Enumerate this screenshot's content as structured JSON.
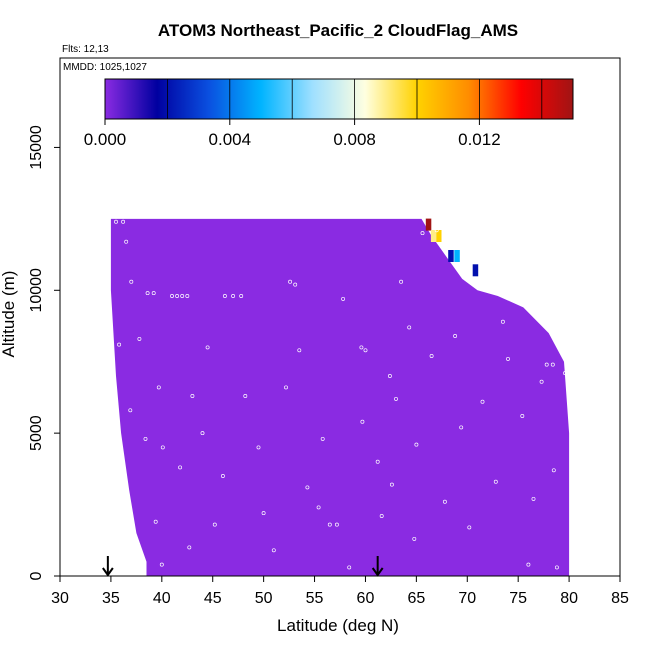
{
  "chart_data": {
    "type": "heatmap",
    "title": "ATOM3 Northeast_Pacific_2 CloudFlag_AMS",
    "annotations": [
      "Flts: 12,13",
      "MMDD: 1025,1027"
    ],
    "xlabel": "Latitude (deg N)",
    "ylabel": "Altitude (m)",
    "xlim": [
      30,
      85
    ],
    "ylim": [
      0,
      17500
    ],
    "x_ticks": [
      "30",
      "35",
      "40",
      "45",
      "50",
      "55",
      "60",
      "65",
      "70",
      "75",
      "80",
      "85"
    ],
    "y_ticks": [
      "0",
      "5000",
      "10000",
      "15000"
    ],
    "colorbar": {
      "range": [
        0,
        0.015
      ],
      "tick_labels": [
        "0.000",
        "0.004",
        "0.008",
        "0.012"
      ],
      "tick_values": [
        0,
        0.004,
        0.008,
        0.012
      ],
      "stops": [
        "#8a2be2",
        "#0000a0",
        "#0a50e0",
        "#00b4ff",
        "#a0e0ff",
        "#ffffe0",
        "#ffd200",
        "#ff8c00",
        "#ff0000",
        "#a01414"
      ]
    },
    "background_value": 0.0,
    "fill_color": "#8a2be2",
    "coverage_top_profile": [
      {
        "lat": 35,
        "alt": 12500
      },
      {
        "lat": 65.5,
        "alt": 12500
      },
      {
        "lat": 66.5,
        "alt": 11900
      },
      {
        "lat": 67.5,
        "alt": 11400
      },
      {
        "lat": 68.5,
        "alt": 10900
      },
      {
        "lat": 69.5,
        "alt": 10400
      },
      {
        "lat": 71,
        "alt": 10000
      },
      {
        "lat": 73,
        "alt": 9800
      },
      {
        "lat": 75.5,
        "alt": 9400
      },
      {
        "lat": 78,
        "alt": 8500
      },
      {
        "lat": 79.5,
        "alt": 7500
      },
      {
        "lat": 80,
        "alt": 5000
      }
    ],
    "highlight_cells": [
      {
        "lat": 66.2,
        "alt": 12300,
        "value": 0.015
      },
      {
        "lat": 67.2,
        "alt": 11900,
        "value": 0.01
      },
      {
        "lat": 66.7,
        "alt": 11900,
        "value": 0.009
      },
      {
        "lat": 69.0,
        "alt": 11200,
        "value": 0.005
      },
      {
        "lat": 68.4,
        "alt": 11200,
        "value": 0.002
      },
      {
        "lat": 70.8,
        "alt": 10700,
        "value": 0.002
      }
    ],
    "sample_points": [
      {
        "lat": 35.5,
        "alt": 12400
      },
      {
        "lat": 36.2,
        "alt": 12400
      },
      {
        "lat": 36.5,
        "alt": 11700
      },
      {
        "lat": 37.0,
        "alt": 10300
      },
      {
        "lat": 38.6,
        "alt": 9900
      },
      {
        "lat": 39.2,
        "alt": 9900
      },
      {
        "lat": 41.0,
        "alt": 9800
      },
      {
        "lat": 41.5,
        "alt": 9800
      },
      {
        "lat": 42.0,
        "alt": 9800
      },
      {
        "lat": 42.5,
        "alt": 9800
      },
      {
        "lat": 46.2,
        "alt": 9800
      },
      {
        "lat": 47.0,
        "alt": 9800
      },
      {
        "lat": 47.8,
        "alt": 9800
      },
      {
        "lat": 52.6,
        "alt": 10300
      },
      {
        "lat": 53.1,
        "alt": 10200
      },
      {
        "lat": 59.6,
        "alt": 8000
      },
      {
        "lat": 60.0,
        "alt": 7900
      },
      {
        "lat": 62.4,
        "alt": 7000
      },
      {
        "lat": 63.5,
        "alt": 10300
      },
      {
        "lat": 64.3,
        "alt": 8700
      },
      {
        "lat": 65.6,
        "alt": 12000
      },
      {
        "lat": 67.0,
        "alt": 12100
      },
      {
        "lat": 68.0,
        "alt": 11800
      },
      {
        "lat": 35.0,
        "alt": 8500
      },
      {
        "lat": 35.3,
        "alt": 6800
      },
      {
        "lat": 37.8,
        "alt": 8300
      },
      {
        "lat": 38.4,
        "alt": 4800
      },
      {
        "lat": 39.7,
        "alt": 6600
      },
      {
        "lat": 40.1,
        "alt": 4500
      },
      {
        "lat": 39.4,
        "alt": 1900
      },
      {
        "lat": 40.0,
        "alt": 400
      },
      {
        "lat": 42.7,
        "alt": 1000
      },
      {
        "lat": 43.0,
        "alt": 6300
      },
      {
        "lat": 44.5,
        "alt": 8000
      },
      {
        "lat": 45.2,
        "alt": 1800
      },
      {
        "lat": 46.0,
        "alt": 3500
      },
      {
        "lat": 48.2,
        "alt": 6300
      },
      {
        "lat": 49.5,
        "alt": 4500
      },
      {
        "lat": 50.0,
        "alt": 2200
      },
      {
        "lat": 51.0,
        "alt": 900
      },
      {
        "lat": 52.2,
        "alt": 6600
      },
      {
        "lat": 54.3,
        "alt": 3100
      },
      {
        "lat": 55.4,
        "alt": 2400
      },
      {
        "lat": 56.5,
        "alt": 1800
      },
      {
        "lat": 57.2,
        "alt": 1800
      },
      {
        "lat": 58.4,
        "alt": 300
      },
      {
        "lat": 59.7,
        "alt": 5400
      },
      {
        "lat": 61.2,
        "alt": 4000
      },
      {
        "lat": 61.6,
        "alt": 2100
      },
      {
        "lat": 62.6,
        "alt": 3200
      },
      {
        "lat": 64.8,
        "alt": 1300
      },
      {
        "lat": 66.5,
        "alt": 7700
      },
      {
        "lat": 69.4,
        "alt": 5200
      },
      {
        "lat": 70.2,
        "alt": 1700
      },
      {
        "lat": 71.5,
        "alt": 6100
      },
      {
        "lat": 72.8,
        "alt": 3300
      },
      {
        "lat": 74.0,
        "alt": 7600
      },
      {
        "lat": 75.4,
        "alt": 5600
      },
      {
        "lat": 76.5,
        "alt": 2700
      },
      {
        "lat": 77.3,
        "alt": 6800
      },
      {
        "lat": 78.5,
        "alt": 3700
      },
      {
        "lat": 77.8,
        "alt": 7400
      },
      {
        "lat": 78.4,
        "alt": 7400
      },
      {
        "lat": 79.6,
        "alt": 7100
      },
      {
        "lat": 76.0,
        "alt": 400
      },
      {
        "lat": 78.8,
        "alt": 300
      },
      {
        "lat": 35.8,
        "alt": 8100
      },
      {
        "lat": 36.9,
        "alt": 5800
      },
      {
        "lat": 41.8,
        "alt": 3800
      },
      {
        "lat": 44.0,
        "alt": 5000
      },
      {
        "lat": 53.5,
        "alt": 7900
      },
      {
        "lat": 55.8,
        "alt": 4800
      },
      {
        "lat": 57.8,
        "alt": 9700
      },
      {
        "lat": 63.0,
        "alt": 6200
      },
      {
        "lat": 65.0,
        "alt": 4600
      },
      {
        "lat": 67.8,
        "alt": 2600
      },
      {
        "lat": 73.5,
        "alt": 8900
      },
      {
        "lat": 68.8,
        "alt": 8400
      }
    ],
    "markers": [
      {
        "lat": 34.7,
        "alt": 0,
        "symbol": "arrow-down"
      },
      {
        "lat": 61.2,
        "alt": 0,
        "symbol": "arrow-down"
      }
    ],
    "grid": false
  }
}
